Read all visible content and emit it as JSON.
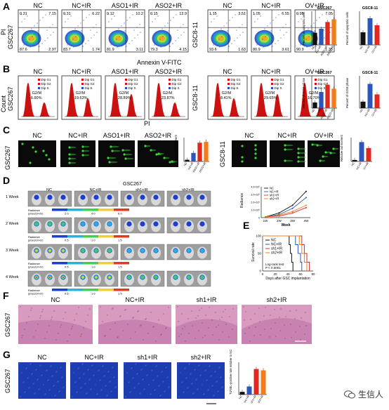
{
  "panels": {
    "A": {
      "letter": "A",
      "left_group": "GSC267",
      "right_group": "GSC8-11",
      "y_axis": "PI",
      "x_axis": "Annexin V-FITC",
      "left_conditions": [
        "NC",
        "NC+IR",
        "ASO1+IR",
        "ASO2+IR"
      ],
      "right_conditions": [
        "NC",
        "NC+IR",
        "OV+IR"
      ],
      "quadrants": [
        {
          "ul": "0.31",
          "ur": "7.15",
          "ll": "87.6",
          "lr": "2.97"
        },
        {
          "ul": "0.31",
          "ur": "6.22",
          "ll": "83.7",
          "lr": "1.74"
        },
        {
          "ul": "0.12",
          "ur": "10.2",
          "ll": "81.9",
          "lr": "3.11"
        },
        {
          "ul": "0.15",
          "ur": "12.9",
          "ll": "79.3",
          "lr": "4.15"
        },
        {
          "ul": "1.15",
          "ur": "3.51",
          "ll": "93.6",
          "lr": "1.63"
        },
        {
          "ul": "1.05",
          "ur": "6.55",
          "ll": "80.9",
          "lr": "3.61"
        },
        {
          "ul": "0.95",
          "ur": "7.05",
          "ll": "90.9",
          "lr": "1.35"
        }
      ],
      "bar1_title": "GSC267",
      "bar1_ylabel": "Percent of apoptotic cells",
      "bar2_title": "GSC8-11",
      "bar2_ylabel": "Percent of apoptotic cells"
    },
    "B": {
      "letter": "B",
      "left_group": "GSC267",
      "right_group": "GSC8-11",
      "y_axis": "Count",
      "x_axis": "PI",
      "left_conditions": [
        "NC",
        "NC+IR",
        "ASO1+IR",
        "ASO2+IR"
      ],
      "right_conditions": [
        "NC",
        "NC+IR",
        "OV+IR"
      ],
      "legend": [
        "Dip G1",
        "Dip G2",
        "Dip S"
      ],
      "g2m_label": "G2/M",
      "g2m_values": [
        "6.90%",
        "19.63%",
        "28.89%",
        "23.87%",
        "8.41%",
        "29.65%",
        "16.70%"
      ],
      "bar1_title": "GSC267",
      "bar1_ylabel": "Percent of G2/M phase",
      "bar2_title": "GSC8-11",
      "bar2_ylabel": "Percent of G2/M phase"
    },
    "C": {
      "letter": "C",
      "left_group": "GSC267",
      "right_group": "GSC8-11",
      "left_conditions": [
        "NC",
        "NC+IR",
        "ASO1+IR",
        "ASO2+IR"
      ],
      "right_conditions": [
        "NC",
        "NC+IR",
        "OV+IR"
      ],
      "bar_ylabel": "Relative tail moment"
    },
    "D": {
      "letter": "D",
      "group": "GSC267",
      "columns": [
        "NC",
        "NC+IR",
        "sh1+IR",
        "sh2+IR"
      ],
      "rows": [
        "1 Week",
        "2 Week",
        "3 Week",
        "4 Week"
      ],
      "radiance": "Radiance",
      "radiance_unit": "(p/sec/cm²/sr)",
      "colorbar_ticks": [
        [
          "2.0",
          "4.0",
          "6.0"
        ],
        [
          "0.5",
          "1.0",
          "1.5"
        ],
        [
          "0.5",
          "1.0",
          "1.5"
        ],
        [
          "0.5",
          "1.0",
          "1.5"
        ]
      ]
    },
    "E": {
      "letter": "E",
      "legend": [
        "NC",
        "NC+IR",
        "sh1+IR",
        "sh2+IR"
      ],
      "ylabel": "Survival rate",
      "xlabel": "Days after GSC implantation",
      "stat": "Log-rank test",
      "pval": "P < 0.0001"
    },
    "F": {
      "letter": "F",
      "group": "GSC267",
      "columns": [
        "NC",
        "NC+IR",
        "sh1+IR",
        "sh2+IR"
      ]
    },
    "G": {
      "letter": "G",
      "group": "GSC267",
      "columns": [
        "NC",
        "NC+IR",
        "sh1+IR",
        "sh2+IR"
      ],
      "bar_ylabel": "TUNEL-positive rate relative to NC"
    }
  },
  "watermark": "生信人",
  "colors": {
    "bar_black": "#111111",
    "bar_blue": "#2b58b8",
    "bar_red": "#e0281e",
    "bar_orange": "#f07c1c",
    "flow_red": "#cc1111",
    "comet_bg": "#0a0a0a",
    "comet_green": "#3bd23b",
    "he_pink": "#d99abf",
    "tunel_blue": "#1c3cb0"
  },
  "chart_data": [
    {
      "id": "A1",
      "type": "bar",
      "title": "GSC267",
      "ylabel": "Percent of apoptotic cells",
      "categories": [
        "NC",
        "NC+IR",
        "ASO1+IR",
        "ASO2+IR"
      ],
      "values": [
        9,
        12,
        17,
        19
      ],
      "ylim": [
        0,
        25
      ],
      "colors": [
        "#111111",
        "#2b58b8",
        "#e0281e",
        "#f07c1c"
      ]
    },
    {
      "id": "A2",
      "type": "bar",
      "title": "GSC8-11",
      "ylabel": "Percent of apoptotic cells",
      "categories": [
        "NC",
        "NC+IR",
        "OV+IR"
      ],
      "values": [
        4.5,
        9.5,
        7
      ],
      "ylim": [
        0,
        12
      ],
      "colors": [
        "#111111",
        "#2b58b8",
        "#e0281e"
      ]
    },
    {
      "id": "B1",
      "type": "bar",
      "title": "GSC267",
      "ylabel": "Percent of G2/M phase",
      "categories": [
        "NC",
        "NC+IR",
        "ASO1+IR",
        "ASO2+IR"
      ],
      "values": [
        7,
        20,
        29,
        24
      ],
      "ylim": [
        0,
        40
      ],
      "colors": [
        "#111111",
        "#2b58b8",
        "#e0281e",
        "#f07c1c"
      ]
    },
    {
      "id": "B2",
      "type": "bar",
      "title": "GSC8-11",
      "ylabel": "Percent of G2/M phase",
      "categories": [
        "NC",
        "NC+IR",
        "OV+IR"
      ],
      "values": [
        8,
        30,
        17
      ],
      "ylim": [
        0,
        40
      ],
      "colors": [
        "#111111",
        "#2b58b8",
        "#e0281e"
      ]
    },
    {
      "id": "C1",
      "type": "bar",
      "ylabel": "Relative tail moment",
      "categories": [
        "NC",
        "NC+IR",
        "ASO1+IR",
        "ASO2+IR"
      ],
      "values": [
        1,
        5,
        11,
        11.5
      ],
      "ylim": [
        0,
        14
      ],
      "colors": [
        "#111111",
        "#2b58b8",
        "#e0281e",
        "#f07c1c"
      ]
    },
    {
      "id": "C2",
      "type": "bar",
      "ylabel": "Relative tail moment",
      "categories": [
        "NC",
        "NC+IR",
        "OV+IR"
      ],
      "values": [
        1,
        13,
        9
      ],
      "ylim": [
        0,
        16
      ],
      "colors": [
        "#111111",
        "#2b58b8",
        "#e0281e"
      ]
    },
    {
      "id": "Dline",
      "type": "line",
      "ylabel": "Radiance",
      "xlabel": "Week",
      "categories": [
        "1W",
        "2W",
        "3W",
        "4W"
      ],
      "series": [
        {
          "name": "NC",
          "color": "#111111",
          "values": [
            0.1,
            0.6,
            1.6,
            3.4
          ]
        },
        {
          "name": "NC+IR",
          "color": "#2b58b8",
          "values": [
            0.1,
            0.4,
            1.2,
            2.6
          ]
        },
        {
          "name": "sh1+IR",
          "color": "#e0281e",
          "values": [
            0.1,
            0.2,
            0.6,
            1.3
          ]
        },
        {
          "name": "sh2+IR",
          "color": "#f07c1c",
          "values": [
            0.1,
            0.3,
            0.8,
            1.6
          ]
        }
      ],
      "ylim": [
        0,
        4
      ],
      "yticks": [
        "0",
        "1.0×10⁵",
        "2.0×10⁵",
        "3.0×10⁵",
        "4.0×10⁵"
      ]
    },
    {
      "id": "E",
      "type": "line",
      "title": "",
      "ylabel": "Survival rate",
      "xlabel": "Days after GSC implantation",
      "series": [
        {
          "name": "NC",
          "color": "#111111",
          "x": [
            0,
            40,
            42,
            44,
            46,
            48
          ],
          "y": [
            100,
            100,
            75,
            50,
            25,
            0
          ]
        },
        {
          "name": "NC+IR",
          "color": "#2b58b8",
          "x": [
            0,
            48,
            52,
            56,
            60,
            62
          ],
          "y": [
            100,
            100,
            75,
            50,
            25,
            0
          ]
        },
        {
          "name": "sh1+IR",
          "color": "#e0281e",
          "x": [
            0,
            58,
            62,
            66,
            70,
            74
          ],
          "y": [
            100,
            100,
            75,
            50,
            25,
            0
          ]
        },
        {
          "name": "sh2+IR",
          "color": "#f07c1c",
          "x": [
            0,
            55,
            58,
            62,
            66,
            70
          ],
          "y": [
            100,
            100,
            75,
            50,
            25,
            0
          ]
        }
      ],
      "xlim": [
        0,
        80
      ],
      "ylim": [
        0,
        100
      ],
      "xticks": [
        0,
        20,
        40,
        60,
        80
      ],
      "yticks": [
        0,
        50,
        100
      ]
    },
    {
      "id": "G",
      "type": "bar",
      "ylabel": "TUNEL-positive rate relative to NC",
      "categories": [
        "NC",
        "NC+IR",
        "sh1+IR",
        "sh2+IR"
      ],
      "values": [
        1,
        3,
        9.5,
        9
      ],
      "ylim": [
        0,
        12
      ],
      "colors": [
        "#111111",
        "#2b58b8",
        "#e0281e",
        "#f07c1c"
      ]
    }
  ]
}
